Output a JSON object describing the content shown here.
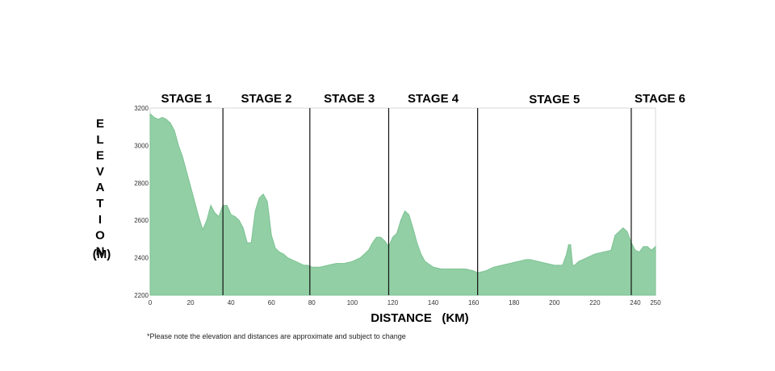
{
  "chart_data": {
    "type": "area",
    "xlabel": "DISTANCE   (KM)",
    "ylabel": "ELEVATION",
    "ylabel_unit": "(M)",
    "footnote": "*Please note the elevation and distances are approximate and subject to change",
    "xlim": [
      0,
      250
    ],
    "ylim": [
      2200,
      3200
    ],
    "x_ticks": [
      0,
      20,
      40,
      60,
      80,
      100,
      120,
      140,
      160,
      180,
      200,
      220,
      240,
      250
    ],
    "y_ticks": [
      2200,
      2400,
      2600,
      2800,
      3000,
      3200
    ],
    "fill_color": "#92cfa5",
    "stages": [
      {
        "label": "STAGE 1",
        "start": 0,
        "end": 36
      },
      {
        "label": "STAGE 2",
        "start": 36,
        "end": 79
      },
      {
        "label": "STAGE 3",
        "start": 79,
        "end": 118
      },
      {
        "label": "STAGE 4",
        "start": 118,
        "end": 162
      },
      {
        "label": "STAGE 5",
        "start": 162,
        "end": 238
      },
      {
        "label": "STAGE 6",
        "start": 238,
        "end": 250
      }
    ],
    "x": [
      0,
      2,
      4,
      6,
      8,
      10,
      12,
      14,
      16,
      18,
      20,
      22,
      24,
      26,
      28,
      30,
      32,
      34,
      36,
      38,
      40,
      42,
      44,
      46,
      48,
      50,
      52,
      54,
      56,
      58,
      60,
      62,
      64,
      66,
      68,
      70,
      72,
      74,
      76,
      78,
      80,
      84,
      88,
      92,
      96,
      100,
      104,
      108,
      110,
      112,
      114,
      116,
      118,
      120,
      122,
      124,
      126,
      128,
      130,
      132,
      134,
      136,
      140,
      144,
      148,
      152,
      156,
      160,
      162,
      166,
      170,
      174,
      178,
      182,
      186,
      188,
      192,
      196,
      200,
      204,
      206,
      207,
      208,
      209,
      210,
      212,
      216,
      220,
      224,
      228,
      230,
      232,
      234,
      236,
      238,
      240,
      242,
      244,
      246,
      248,
      250
    ],
    "y": [
      3170,
      3150,
      3140,
      3150,
      3140,
      3120,
      3080,
      3000,
      2940,
      2860,
      2780,
      2700,
      2620,
      2550,
      2600,
      2680,
      2640,
      2620,
      2680,
      2680,
      2630,
      2620,
      2600,
      2560,
      2480,
      2480,
      2650,
      2720,
      2740,
      2700,
      2520,
      2450,
      2430,
      2420,
      2400,
      2390,
      2380,
      2370,
      2360,
      2360,
      2350,
      2350,
      2360,
      2370,
      2370,
      2380,
      2400,
      2440,
      2480,
      2510,
      2510,
      2490,
      2460,
      2510,
      2530,
      2600,
      2650,
      2630,
      2560,
      2480,
      2420,
      2380,
      2350,
      2340,
      2340,
      2340,
      2340,
      2330,
      2320,
      2330,
      2350,
      2360,
      2370,
      2380,
      2390,
      2390,
      2380,
      2370,
      2360,
      2360,
      2420,
      2470,
      2470,
      2360,
      2360,
      2380,
      2400,
      2420,
      2430,
      2440,
      2520,
      2540,
      2560,
      2540,
      2480,
      2440,
      2430,
      2460,
      2460,
      2440,
      2460
    ]
  }
}
